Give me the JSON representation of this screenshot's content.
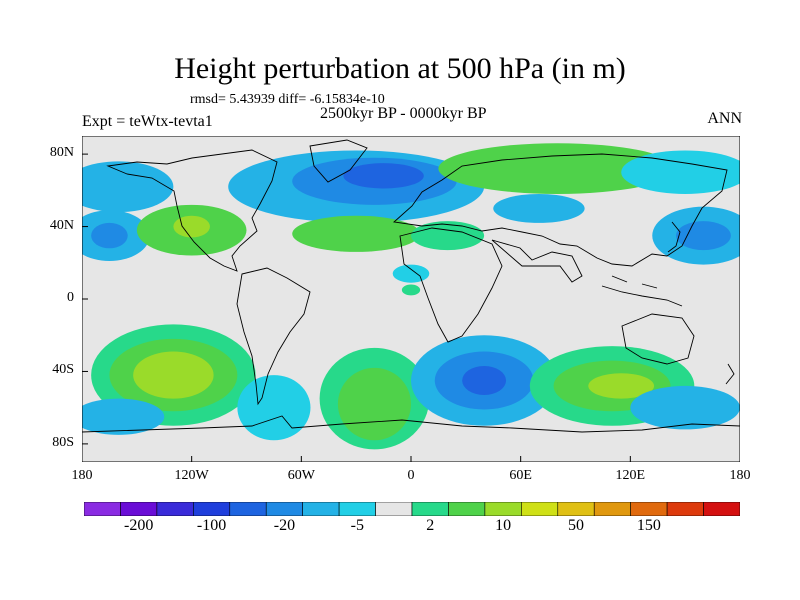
{
  "title": "Height perturbation at 500 hPa (in m)",
  "stats": "rmsd= 5.43939 diff= -6.15834e-10",
  "experiment": "Expt = teWtx-tevta1",
  "period": "2500kyr BP - 0000kyr BP",
  "season": "ANN",
  "map": {
    "projection": "cylindrical equidistant",
    "lon_range": [
      -180,
      180
    ],
    "lat_range": [
      -90,
      90
    ],
    "lat_ticks": [
      {
        "value": 80,
        "label": "80N"
      },
      {
        "value": 40,
        "label": "40N"
      },
      {
        "value": 0,
        "label": "0"
      },
      {
        "value": -40,
        "label": "40S"
      },
      {
        "value": -80,
        "label": "80S"
      }
    ],
    "lon_ticks": [
      {
        "value": -180,
        "label": "180"
      },
      {
        "value": -120,
        "label": "120W"
      },
      {
        "value": -60,
        "label": "60W"
      },
      {
        "value": 0,
        "label": "0"
      },
      {
        "value": 60,
        "label": "60E"
      },
      {
        "value": 120,
        "label": "120E"
      },
      {
        "value": 180,
        "label": "180"
      }
    ]
  },
  "colorbar": {
    "colors": [
      "#8a2be2",
      "#6a0dd6",
      "#3a2bd9",
      "#1f3fdc",
      "#1e64e0",
      "#1f8ae4",
      "#24b2e6",
      "#22cfe6",
      "#e6e6e6",
      "#27d98a",
      "#4fd24a",
      "#9adb2a",
      "#cfe016",
      "#e0c014",
      "#e0980f",
      "#e06a0e",
      "#dd3a0c",
      "#d41010"
    ],
    "tick_labels": [
      "-200",
      "-100",
      "-20",
      "-5",
      "2",
      "10",
      "50",
      "150"
    ],
    "tick_boundary_index": [
      1,
      3,
      5,
      7,
      9,
      11,
      13,
      15
    ]
  },
  "field_blobs": [
    {
      "lon": -30,
      "lat": 62,
      "rx": 70,
      "ry": 20,
      "level": "#24b2e6"
    },
    {
      "lon": -20,
      "lat": 65,
      "rx": 45,
      "ry": 13,
      "level": "#1f8ae4"
    },
    {
      "lon": -15,
      "lat": 68,
      "rx": 22,
      "ry": 7,
      "level": "#1e64e0"
    },
    {
      "lon": -160,
      "lat": 62,
      "rx": 30,
      "ry": 14,
      "level": "#24b2e6"
    },
    {
      "lon": 80,
      "lat": 72,
      "rx": 65,
      "ry": 14,
      "level": "#4fd24a"
    },
    {
      "lon": 70,
      "lat": 50,
      "rx": 25,
      "ry": 8,
      "level": "#24b2e6"
    },
    {
      "lon": 150,
      "lat": 70,
      "rx": 35,
      "ry": 12,
      "level": "#22cfe6"
    },
    {
      "lon": 160,
      "lat": 35,
      "rx": 28,
      "ry": 16,
      "level": "#24b2e6"
    },
    {
      "lon": 160,
      "lat": 35,
      "rx": 15,
      "ry": 8,
      "level": "#1f8ae4"
    },
    {
      "lon": -165,
      "lat": 35,
      "rx": 22,
      "ry": 14,
      "level": "#24b2e6"
    },
    {
      "lon": -165,
      "lat": 35,
      "rx": 10,
      "ry": 7,
      "level": "#1f8ae4"
    },
    {
      "lon": -120,
      "lat": 38,
      "rx": 30,
      "ry": 14,
      "level": "#4fd24a"
    },
    {
      "lon": -120,
      "lat": 40,
      "rx": 10,
      "ry": 6,
      "level": "#9adb2a"
    },
    {
      "lon": -30,
      "lat": 36,
      "rx": 35,
      "ry": 10,
      "level": "#4fd24a"
    },
    {
      "lon": 20,
      "lat": 35,
      "rx": 20,
      "ry": 8,
      "level": "#27d98a"
    },
    {
      "lon": 0,
      "lat": 14,
      "rx": 10,
      "ry": 5,
      "level": "#22cfe6"
    },
    {
      "lon": -130,
      "lat": -42,
      "rx": 45,
      "ry": 28,
      "level": "#27d98a"
    },
    {
      "lon": -130,
      "lat": -42,
      "rx": 35,
      "ry": 20,
      "level": "#4fd24a"
    },
    {
      "lon": -130,
      "lat": -42,
      "rx": 22,
      "ry": 13,
      "level": "#9adb2a"
    },
    {
      "lon": -160,
      "lat": -65,
      "rx": 25,
      "ry": 10,
      "level": "#24b2e6"
    },
    {
      "lon": -75,
      "lat": -60,
      "rx": 20,
      "ry": 18,
      "level": "#22cfe6"
    },
    {
      "lon": -20,
      "lat": -55,
      "rx": 30,
      "ry": 28,
      "level": "#27d98a"
    },
    {
      "lon": -20,
      "lat": -58,
      "rx": 20,
      "ry": 20,
      "level": "#4fd24a"
    },
    {
      "lon": 40,
      "lat": -45,
      "rx": 40,
      "ry": 25,
      "level": "#24b2e6"
    },
    {
      "lon": 40,
      "lat": -45,
      "rx": 27,
      "ry": 16,
      "level": "#1f8ae4"
    },
    {
      "lon": 40,
      "lat": -45,
      "rx": 12,
      "ry": 8,
      "level": "#1e64e0"
    },
    {
      "lon": 110,
      "lat": -48,
      "rx": 45,
      "ry": 22,
      "level": "#27d98a"
    },
    {
      "lon": 110,
      "lat": -48,
      "rx": 32,
      "ry": 14,
      "level": "#4fd24a"
    },
    {
      "lon": 115,
      "lat": -48,
      "rx": 18,
      "ry": 7,
      "level": "#9adb2a"
    },
    {
      "lon": 150,
      "lat": -60,
      "rx": 30,
      "ry": 12,
      "level": "#24b2e6"
    },
    {
      "lon": 0,
      "lat": 5,
      "rx": 5,
      "ry": 3,
      "level": "#27d98a"
    }
  ]
}
